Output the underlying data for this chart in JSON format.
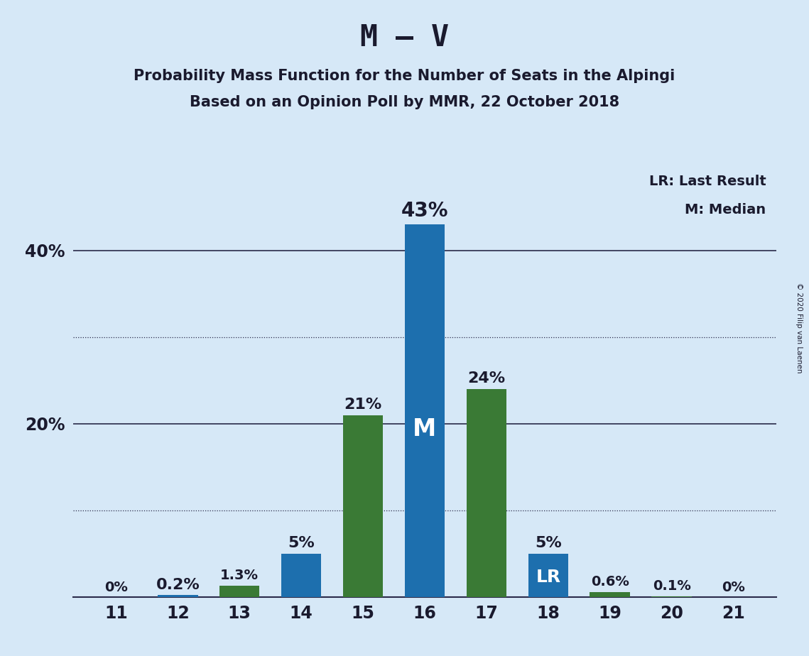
{
  "title": "M – V",
  "subtitle1": "Probability Mass Function for the Number of Seats in the Alpingi",
  "subtitle2": "Based on an Opinion Poll by MMR, 22 October 2018",
  "copyright": "© 2020 Filip van Laenen",
  "seats": [
    11,
    12,
    13,
    14,
    15,
    16,
    17,
    18,
    19,
    20,
    21
  ],
  "blue_values": [
    0.0,
    0.2,
    0.0,
    5.0,
    0.0,
    43.0,
    0.0,
    5.0,
    0.0,
    0.0,
    0.0
  ],
  "green_values": [
    0.0,
    0.0,
    1.3,
    0.0,
    21.0,
    0.0,
    24.0,
    0.0,
    0.6,
    0.1,
    0.0
  ],
  "bar_labels": [
    "0%",
    "0.2%",
    "1.3%",
    "5%",
    "21%",
    "43%",
    "24%",
    "5%",
    "0.6%",
    "0.1%",
    "0%"
  ],
  "blue_color": "#1D6FAE",
  "green_color": "#3A7A35",
  "background_color": "#D6E8F7",
  "median_seat": 16,
  "lr_seat": 18,
  "legend_lr": "LR: Last Result",
  "legend_m": "M: Median",
  "ylim": [
    0,
    50
  ],
  "solid_gridlines": [
    20,
    40
  ],
  "dotted_gridlines": [
    10,
    30
  ],
  "ytick_positions": [
    20,
    40
  ],
  "ytick_labels": [
    "20%",
    "40%"
  ],
  "label_fontsize": 14,
  "title_fontsize": 30,
  "subtitle_fontsize": 15,
  "tick_fontsize": 17
}
